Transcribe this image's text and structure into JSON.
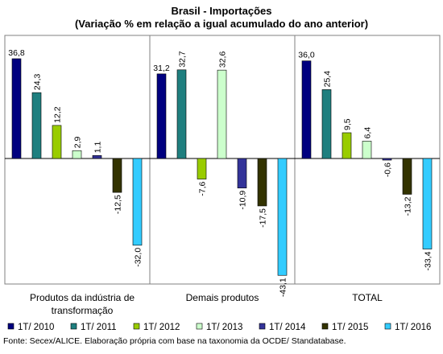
{
  "chart_data": {
    "type": "bar",
    "title": "Brasil - Importações",
    "subtitle": "(Variação % em relação a igual acumulado do ano anterior)",
    "categories": [
      "Produtos da indústria de transformação",
      "Demais produtos",
      "TOTAL"
    ],
    "category_lines": [
      [
        "Produtos da indústria de",
        "transformação"
      ],
      [
        "Demais produtos"
      ],
      [
        "TOTAL"
      ]
    ],
    "series": [
      {
        "name": "1T/ 2010",
        "color": "#00007f",
        "values": [
          36.8,
          31.2,
          36.0
        ],
        "labels": [
          "36,8",
          "31,2",
          "36,0"
        ]
      },
      {
        "name": "1T/ 2011",
        "color": "#1f7f7f",
        "values": [
          24.3,
          32.7,
          25.4
        ],
        "labels": [
          "24,3",
          "32,7",
          "25,4"
        ]
      },
      {
        "name": "1T/ 2012",
        "color": "#99cc00",
        "values": [
          12.2,
          -7.6,
          9.5
        ],
        "labels": [
          "12,2",
          "-7,6",
          "9,5"
        ]
      },
      {
        "name": "1T/ 2013",
        "color": "#ccffcc",
        "values": [
          2.9,
          32.6,
          6.4
        ],
        "labels": [
          "2,9",
          "32,6",
          "6,4"
        ]
      },
      {
        "name": "1T/ 2014",
        "color": "#333399",
        "values": [
          1.1,
          -10.9,
          -0.6
        ],
        "labels": [
          "1,1",
          "-10,9",
          "-0,6"
        ]
      },
      {
        "name": "1T/ 2015",
        "color": "#333300",
        "values": [
          -12.5,
          -17.5,
          -13.2
        ],
        "labels": [
          "-12,5",
          "-17,5",
          "-13,2"
        ]
      },
      {
        "name": "1T/ 2016",
        "color": "#33ccff",
        "values": [
          -32.0,
          -43.1,
          -33.4
        ],
        "labels": [
          "-32,0",
          "-43,1",
          "-33,4"
        ]
      }
    ],
    "ylim": [
      -45,
      42
    ],
    "grid": false,
    "legend_position": "bottom"
  },
  "source": "Fonte: Secex/ALICE. Elaboração própria com base na taxonomia da OCDE/ Standatabase."
}
